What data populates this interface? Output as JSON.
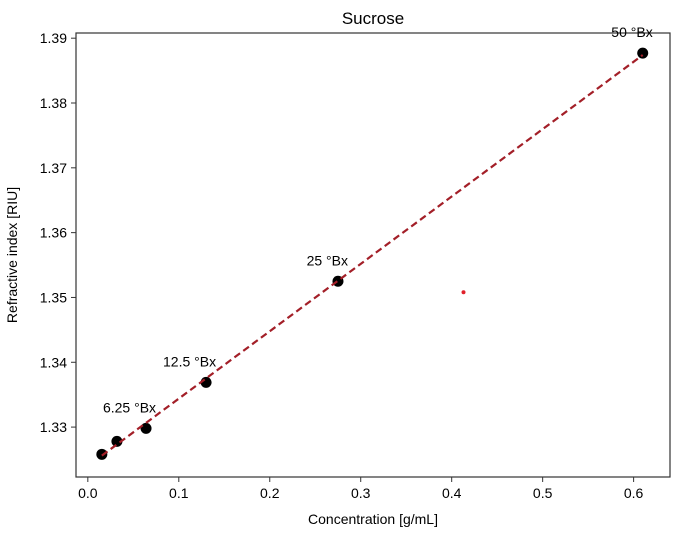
{
  "chart_data": {
    "type": "scatter",
    "title": "Sucrose",
    "xlabel": "Concentration [g/mL]",
    "ylabel": "Refractive index [RIU]",
    "xlim": [
      -0.013,
      0.64
    ],
    "ylim": [
      1.3223,
      1.3908
    ],
    "xticks": [
      0.0,
      0.1,
      0.2,
      0.3,
      0.4,
      0.5,
      0.6
    ],
    "xtick_labels": [
      "0.0",
      "0.1",
      "0.2",
      "0.3",
      "0.4",
      "0.5",
      "0.6"
    ],
    "yticks": [
      1.33,
      1.34,
      1.35,
      1.36,
      1.37,
      1.38,
      1.39
    ],
    "ytick_labels": [
      "1.33",
      "1.34",
      "1.35",
      "1.36",
      "1.37",
      "1.38",
      "1.39"
    ],
    "grid": false,
    "points": [
      {
        "x": 0.0154,
        "y": 1.3258
      },
      {
        "x": 0.032,
        "y": 1.3278
      },
      {
        "x": 0.064,
        "y": 1.3298
      },
      {
        "x": 0.13,
        "y": 1.3369
      },
      {
        "x": 0.275,
        "y": 1.3525
      },
      {
        "x": 0.61,
        "y": 1.3877
      }
    ],
    "annotations": [
      {
        "text": "6.25 °Bx",
        "x": 0.064,
        "y": 1.3298
      },
      {
        "text": "12.5 °Bx",
        "x": 0.13,
        "y": 1.3369
      },
      {
        "text": "25 °Bx",
        "x": 0.275,
        "y": 1.3525
      },
      {
        "text": "50 °Bx",
        "x": 0.61,
        "y": 1.3877
      }
    ],
    "fit_line": {
      "x": [
        0.0154,
        0.61
      ],
      "y": [
        1.3256,
        1.3874
      ],
      "style": "dashed",
      "color": "#a31f28"
    },
    "extra_point": {
      "x": 0.413,
      "y": 1.3508,
      "color": "#e0202a"
    },
    "point_color": "#000000"
  }
}
